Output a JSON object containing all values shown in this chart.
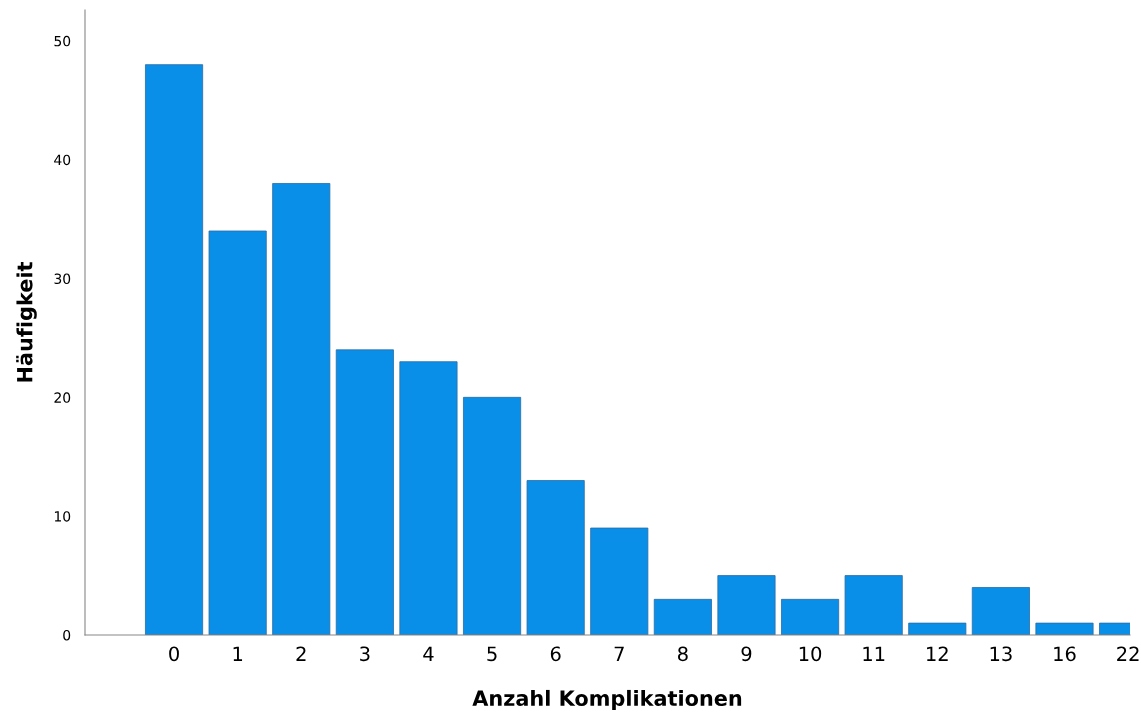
{
  "chart_data": {
    "type": "bar",
    "xlabel": "Anzahl Komplikationen",
    "ylabel": "Häufigkeit",
    "categories": [
      "0",
      "1",
      "2",
      "3",
      "4",
      "5",
      "6",
      "7",
      "8",
      "9",
      "10",
      "11",
      "12",
      "13",
      "16",
      "22"
    ],
    "values": [
      48,
      34,
      38,
      24,
      23,
      20,
      13,
      9,
      3,
      5,
      3,
      5,
      1,
      4,
      1,
      1
    ],
    "color": "#0a8fe8",
    "ylim": [
      0,
      52.6
    ],
    "yticks": [
      0,
      10,
      20,
      30,
      40,
      50
    ],
    "grid": false,
    "legend": false
  }
}
